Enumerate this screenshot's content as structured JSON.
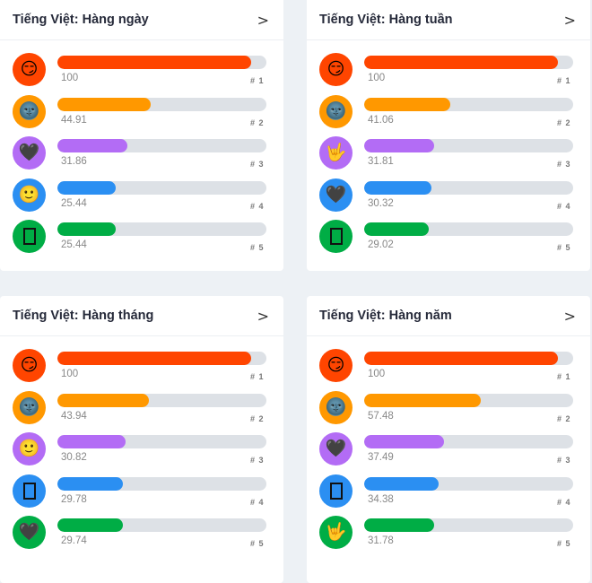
{
  "colors": {
    "accent": "#ff4500",
    "rank_colors": [
      "#ff4500",
      "#ff9800",
      "#b36cf5",
      "#2b8ff2",
      "#00ad45"
    ],
    "track": "#dde1e6"
  },
  "cards": [
    {
      "title": "Tiếng Việt: Hàng ngày",
      "items": [
        {
          "emoji": "😏",
          "icon": "smirking-face-icon",
          "value": "100",
          "rank": "# 1"
        },
        {
          "emoji": "🌚",
          "icon": "new-moon-face-icon",
          "value": "44.91",
          "rank": "# 2"
        },
        {
          "emoji": "🖤",
          "icon": "black-heart-icon",
          "value": "31.86",
          "rank": "# 3"
        },
        {
          "emoji": "🙂",
          "icon": "slightly-smiling-face-icon",
          "value": "25.44",
          "rank": "# 4"
        },
        {
          "emoji": "",
          "icon": "missing-glyph-icon",
          "value": "25.44",
          "rank": "# 5"
        }
      ]
    },
    {
      "title": "Tiếng Việt: Hàng tuần",
      "items": [
        {
          "emoji": "😏",
          "icon": "smirking-face-icon",
          "value": "100",
          "rank": "# 1"
        },
        {
          "emoji": "🌚",
          "icon": "new-moon-face-icon",
          "value": "41.06",
          "rank": "# 2"
        },
        {
          "emoji": "🤟",
          "icon": "love-you-gesture-icon",
          "value": "31.81",
          "rank": "# 3"
        },
        {
          "emoji": "🖤",
          "icon": "black-heart-icon",
          "value": "30.32",
          "rank": "# 4"
        },
        {
          "emoji": "",
          "icon": "missing-glyph-icon",
          "value": "29.02",
          "rank": "# 5"
        }
      ]
    },
    {
      "title": "Tiếng Việt: Hàng tháng",
      "items": [
        {
          "emoji": "😏",
          "icon": "smirking-face-icon",
          "value": "100",
          "rank": "# 1"
        },
        {
          "emoji": "🌚",
          "icon": "new-moon-face-icon",
          "value": "43.94",
          "rank": "# 2"
        },
        {
          "emoji": "🙂",
          "icon": "slightly-smiling-face-icon",
          "value": "30.82",
          "rank": "# 3"
        },
        {
          "emoji": "",
          "icon": "missing-glyph-icon",
          "value": "29.78",
          "rank": "# 4"
        },
        {
          "emoji": "🖤",
          "icon": "black-heart-icon",
          "value": "29.74",
          "rank": "# 5"
        }
      ]
    },
    {
      "title": "Tiếng Việt: Hàng năm",
      "items": [
        {
          "emoji": "😏",
          "icon": "smirking-face-icon",
          "value": "100",
          "rank": "# 1"
        },
        {
          "emoji": "🌚",
          "icon": "new-moon-face-icon",
          "value": "57.48",
          "rank": "# 2"
        },
        {
          "emoji": "🖤",
          "icon": "black-heart-icon",
          "value": "37.49",
          "rank": "# 3"
        },
        {
          "emoji": "",
          "icon": "missing-glyph-icon",
          "value": "34.38",
          "rank": "# 4"
        },
        {
          "emoji": "🤟",
          "icon": "love-you-gesture-icon",
          "value": "31.78",
          "rank": "# 5"
        }
      ]
    }
  ],
  "chevron": ">"
}
